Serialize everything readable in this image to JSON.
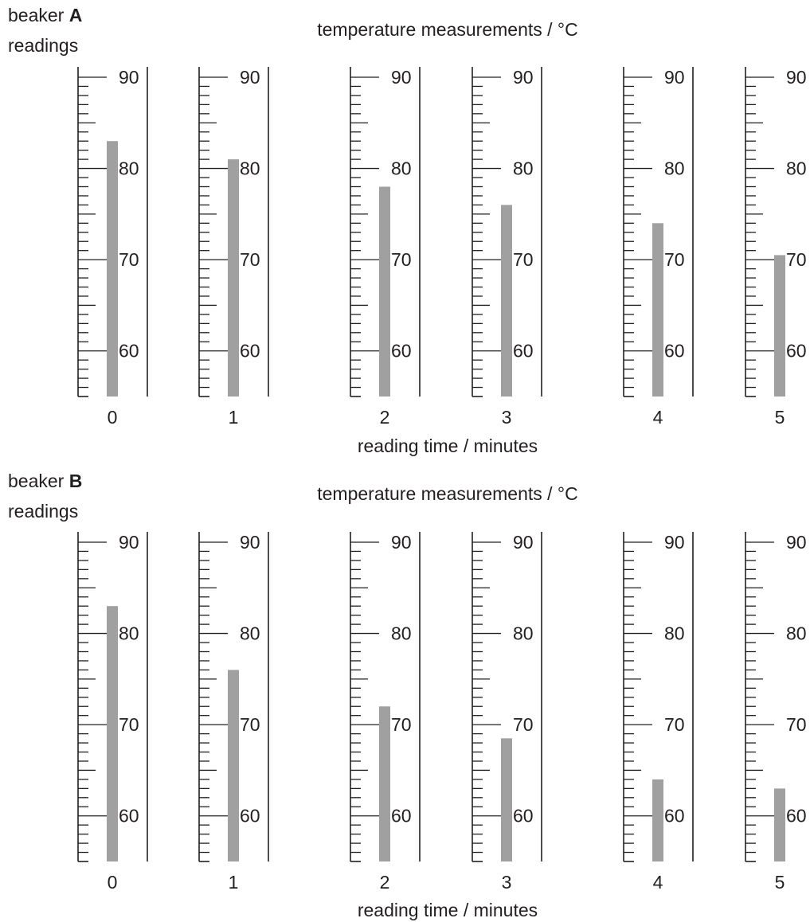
{
  "units": "°C",
  "scale": {
    "min": 55,
    "max": 90,
    "minor_step": 1,
    "mid_step": 5,
    "major_step": 10,
    "labels": [
      60,
      70,
      80,
      90
    ]
  },
  "colors": {
    "ink": "#231f20",
    "liquid": "#a0a0a0"
  },
  "panels": [
    {
      "id": "A",
      "label_prefix": "beaker ",
      "label_letter": "A",
      "label_line2": "readings",
      "heading": "temperature measurements / °C",
      "xlabel": "reading time / minutes",
      "thermometers": [
        {
          "time": "0",
          "reading": 83
        },
        {
          "time": "1",
          "reading": 81
        },
        {
          "time": "2",
          "reading": 78
        },
        {
          "time": "3",
          "reading": 76
        },
        {
          "time": "4",
          "reading": 74
        },
        {
          "time": "5",
          "reading": 70.5
        }
      ]
    },
    {
      "id": "B",
      "label_prefix": "beaker ",
      "label_letter": "B",
      "label_line2": "readings",
      "heading": "temperature measurements / °C",
      "xlabel": "reading time / minutes",
      "thermometers": [
        {
          "time": "0",
          "reading": 83
        },
        {
          "time": "1",
          "reading": 76
        },
        {
          "time": "2",
          "reading": 72
        },
        {
          "time": "3",
          "reading": 68.5
        },
        {
          "time": "4",
          "reading": 64
        },
        {
          "time": "5",
          "reading": 63
        }
      ]
    }
  ]
}
